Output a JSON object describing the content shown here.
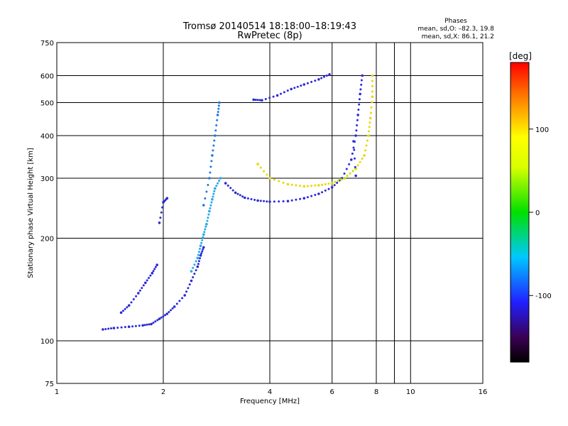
{
  "chart_data": {
    "type": "scatter",
    "title": "Tromsø 20140514  18:18:00–18:19:43",
    "subtitle": "RwPretec (8p)",
    "xlabel": "Frequency [MHz]",
    "ylabel": "Stationary phase Virtual Height [km]",
    "x_scale": "log2",
    "y_scale": "log",
    "xlim": [
      1,
      16
    ],
    "ylim": [
      75,
      750
    ],
    "x_ticks": [
      1,
      2,
      4,
      6,
      8,
      10,
      16
    ],
    "x_tick_labels": [
      "1",
      "2",
      "4",
      "6",
      "8",
      "10",
      "16"
    ],
    "x_minor_ticks": [
      9
    ],
    "y_ticks": [
      75,
      100,
      200,
      300,
      400,
      500,
      600,
      750
    ],
    "y_tick_labels": [
      "75",
      "100",
      "200",
      "300",
      "400",
      "500",
      "600",
      "750"
    ],
    "grid": true,
    "phases": {
      "heading": "Phases",
      "line1": "mean, sd,O: –82.3, 19.8",
      "line2": "mean, sd,X:  86.1, 21.2"
    },
    "colorbar": {
      "label": "[deg]",
      "range": [
        -180,
        180
      ],
      "ticks": [
        100,
        0,
        -100
      ],
      "tick_labels": [
        "100",
        "0",
        "-100"
      ]
    },
    "series": [
      {
        "mode": "O",
        "phase": -110,
        "color": "#2a2ad8",
        "points": [
          [
            1.35,
            108
          ],
          [
            1.45,
            109
          ],
          [
            1.6,
            110
          ],
          [
            1.75,
            111
          ],
          [
            1.85,
            112
          ],
          [
            1.95,
            116
          ],
          [
            2.05,
            120
          ],
          [
            2.15,
            126
          ],
          [
            2.3,
            136
          ],
          [
            2.4,
            150
          ],
          [
            2.5,
            165
          ],
          [
            2.55,
            178
          ],
          [
            2.6,
            188
          ]
        ]
      },
      {
        "mode": "O",
        "phase": -110,
        "color": "#2a2ad8",
        "points": [
          [
            1.52,
            121
          ],
          [
            1.6,
            127
          ],
          [
            1.7,
            138
          ],
          [
            1.78,
            148
          ],
          [
            1.86,
            158
          ],
          [
            1.92,
            167
          ]
        ]
      },
      {
        "mode": "O",
        "phase": -115,
        "color": "#2a2ad8",
        "points": [
          [
            3.0,
            290
          ],
          [
            3.2,
            272
          ],
          [
            3.4,
            263
          ],
          [
            3.7,
            258
          ],
          [
            4.0,
            256
          ],
          [
            4.5,
            257
          ],
          [
            5.0,
            262
          ],
          [
            5.5,
            270
          ],
          [
            6.0,
            282
          ],
          [
            6.4,
            300
          ],
          [
            6.8,
            340
          ],
          [
            7.0,
            400
          ],
          [
            7.1,
            460
          ],
          [
            7.2,
            530
          ],
          [
            7.3,
            600
          ]
        ]
      },
      {
        "mode": "O",
        "phase": -115,
        "color": "#2a2ad8",
        "points": [
          [
            3.6,
            510
          ],
          [
            3.8,
            508
          ],
          [
            4.2,
            525
          ],
          [
            4.6,
            548
          ],
          [
            5.0,
            565
          ],
          [
            5.5,
            585
          ],
          [
            5.9,
            605
          ]
        ]
      },
      {
        "mode": "O",
        "phase": -100,
        "color": "#1f78e0",
        "points": [
          [
            2.6,
            250
          ],
          [
            2.7,
            300
          ],
          [
            2.75,
            350
          ],
          [
            2.8,
            400
          ],
          [
            2.85,
            460
          ],
          [
            2.88,
            500
          ]
        ]
      },
      {
        "mode": "O",
        "phase": -90,
        "color": "#24a8e8",
        "points": [
          [
            2.4,
            160
          ],
          [
            2.5,
            175
          ],
          [
            2.55,
            190
          ],
          [
            2.6,
            205
          ],
          [
            2.65,
            220
          ],
          [
            2.7,
            240
          ],
          [
            2.75,
            260
          ],
          [
            2.8,
            280
          ],
          [
            2.9,
            300
          ]
        ]
      },
      {
        "mode": "X",
        "phase": 90,
        "color": "#e8d800",
        "points": [
          [
            3.7,
            330
          ],
          [
            4.0,
            300
          ],
          [
            4.5,
            288
          ],
          [
            5.0,
            284
          ],
          [
            5.5,
            286
          ],
          [
            6.0,
            290
          ],
          [
            6.5,
            300
          ],
          [
            7.0,
            320
          ],
          [
            7.4,
            350
          ],
          [
            7.6,
            400
          ],
          [
            7.7,
            450
          ],
          [
            7.8,
            520
          ],
          [
            7.8,
            600
          ]
        ]
      },
      {
        "mode": "X",
        "phase": 85,
        "color": "#c8e000",
        "points": [
          [
            6.0,
            290
          ],
          [
            6.5,
            300
          ],
          [
            7.0,
            320
          ]
        ]
      },
      {
        "mode": "O",
        "phase": -112,
        "color": "#2a2ad8",
        "points": [
          [
            1.95,
            222
          ],
          [
            2.0,
            255
          ],
          [
            2.05,
            262
          ]
        ]
      },
      {
        "mode": "O",
        "phase": -105,
        "color": "#2a2ad8",
        "points": [
          [
            6.9,
            385
          ],
          [
            7.0,
            305
          ]
        ]
      }
    ]
  }
}
